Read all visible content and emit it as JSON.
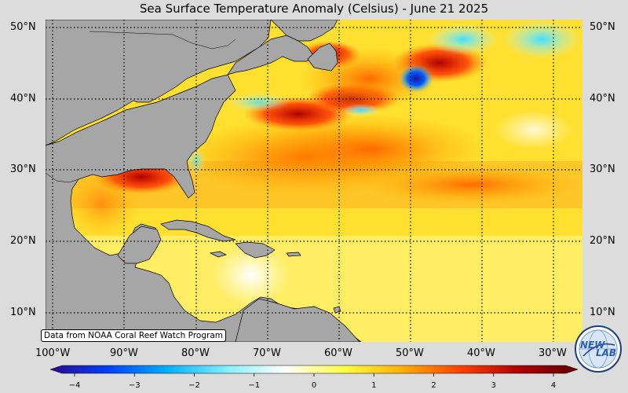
{
  "title": "Sea Surface Temperature Anomaly (Celsius) - June 21 2025",
  "credit": "Data from NOAA Coral Reef Watch Program",
  "logo_text_1": "NEW",
  "logo_text_2": "LAB",
  "lat_labels": [
    "50°N",
    "40°N",
    "30°N",
    "20°N",
    "10°N"
  ],
  "lon_labels": [
    "100°W",
    "90°W",
    "80°W",
    "70°W",
    "60°W",
    "50°W",
    "40°W",
    "30°W"
  ],
  "colorbar": {
    "min": -4,
    "max": 4,
    "ticks": [
      "−4",
      "−3",
      "−2",
      "−1",
      "0",
      "1",
      "2",
      "3",
      "4"
    ],
    "colors": [
      "#2a0a8c",
      "#0040ff",
      "#00b0ff",
      "#80f0ff",
      "#ffffff",
      "#ffff40",
      "#ffb000",
      "#ff4000",
      "#b00000",
      "#600000"
    ]
  },
  "colors": {
    "land": "#a6a6a6",
    "background": "#dcdcdc"
  }
}
